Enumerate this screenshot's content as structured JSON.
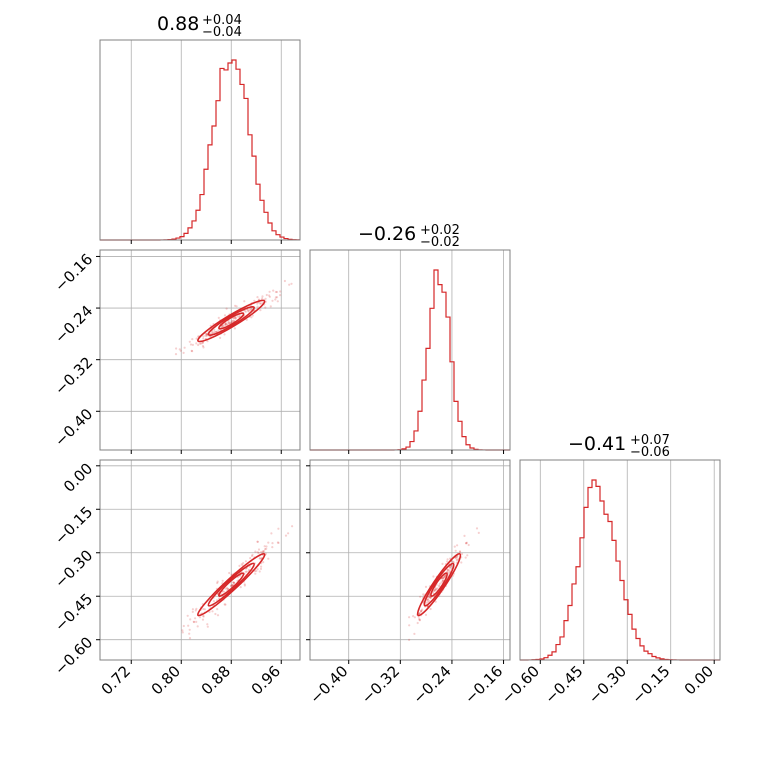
{
  "chart_data": {
    "type": "corner",
    "color": "#d62728",
    "grid": true,
    "parameters": [
      {
        "median": 0.88,
        "plus": 0.04,
        "minus": 0.04,
        "title": "0.88",
        "title_plus": "+0.04",
        "title_minus": "−0.04",
        "range": [
          0.67,
          0.99
        ],
        "ticks": [
          0.72,
          0.8,
          0.88,
          0.96
        ],
        "tick_labels": [
          "0.72",
          "0.80",
          "0.88",
          "0.96"
        ],
        "hist_sigma": 0.028
      },
      {
        "median": -0.26,
        "plus": 0.02,
        "minus": 0.02,
        "title": "−0.26",
        "title_plus": "+0.02",
        "title_minus": "−0.02",
        "range": [
          -0.46,
          -0.15
        ],
        "ticks": [
          -0.4,
          -0.32,
          -0.24,
          -0.16
        ],
        "tick_labels": [
          "−0.40",
          "−0.32",
          "−0.24",
          "−0.16"
        ],
        "hist_sigma": 0.017
      },
      {
        "median": -0.41,
        "plus": 0.07,
        "minus": 0.06,
        "title": "−0.41",
        "title_plus": "+0.07",
        "title_minus": "−0.06",
        "range": [
          -0.67,
          0.02
        ],
        "ticks": [
          -0.6,
          -0.45,
          -0.3,
          -0.15,
          0.0
        ],
        "tick_labels": [
          "−0.60",
          "−0.45",
          "−0.30",
          "−0.15",
          "0.00"
        ],
        "hist_sigma": 0.058
      }
    ]
  }
}
